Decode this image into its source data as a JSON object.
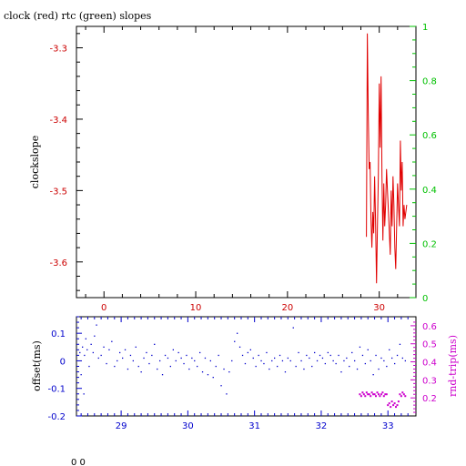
{
  "colors": {
    "clock": "#e00000",
    "rtc": "#00c000",
    "offset": "#0000cc",
    "rtt": "#cc00cc",
    "axis": "#000000"
  },
  "footer": {
    "text": "0 0"
  },
  "chart_data": [
    {
      "type": "line",
      "title": "clock (red) rtc (green) slopes",
      "ylabel": "clockslope",
      "xlim": [
        -3,
        34
      ],
      "ylim": [
        -3.65,
        -3.27
      ],
      "y2lim": [
        0,
        1
      ],
      "x_ticks": [
        0,
        10,
        20,
        30
      ],
      "y_ticks": [
        -3.3,
        -3.4,
        -3.5,
        -3.6
      ],
      "y_tick_labels": [
        "-3.3",
        "-3.4",
        "-3.5",
        "-3.6"
      ],
      "y2_ticks": [
        0,
        0.2,
        0.4,
        0.6,
        0.8,
        1
      ],
      "y2_tick_labels": [
        "0",
        "0.2",
        "0.4",
        "0.6",
        "0.8",
        "1"
      ],
      "series": [
        {
          "name": "clock",
          "x": [
            28.6,
            28.7,
            28.8,
            28.9,
            29.0,
            29.1,
            29.2,
            29.3,
            29.4,
            29.5,
            29.6,
            29.7,
            29.8,
            29.9,
            30.0,
            30.1,
            30.2,
            30.3,
            30.4,
            30.5,
            30.6,
            30.7,
            30.8,
            30.9,
            31.0,
            31.1,
            31.2,
            31.3,
            31.4,
            31.5,
            31.6,
            31.7,
            31.8,
            31.9,
            32.0,
            32.1,
            32.2,
            32.3,
            32.4,
            32.5,
            32.6,
            32.7,
            32.8,
            32.9,
            33.0
          ],
          "y": [
            -3.565,
            -3.28,
            -3.39,
            -3.47,
            -3.46,
            -3.54,
            -3.58,
            -3.53,
            -3.56,
            -3.48,
            -3.54,
            -3.63,
            -3.55,
            -3.48,
            -3.35,
            -3.44,
            -3.34,
            -3.48,
            -3.57,
            -3.49,
            -3.55,
            -3.52,
            -3.47,
            -3.5,
            -3.53,
            -3.56,
            -3.59,
            -3.5,
            -3.55,
            -3.48,
            -3.52,
            -3.58,
            -3.61,
            -3.55,
            -3.49,
            -3.52,
            -3.55,
            -3.43,
            -3.5,
            -3.46,
            -3.55,
            -3.52,
            -3.54,
            -3.53,
            -3.52
          ]
        }
      ]
    },
    {
      "type": "scatter",
      "ylabel": "offset(ms)",
      "y2label": "rnd-trip(ms)",
      "xlim": [
        28.33,
        33.42
      ],
      "ylim": [
        -0.2,
        0.16
      ],
      "y2lim": [
        0.1,
        0.65
      ],
      "x_ticks": [
        29,
        30,
        31,
        32,
        33
      ],
      "y_ticks": [
        0.1,
        0,
        -0.1,
        -0.2
      ],
      "y_tick_labels": [
        "0.1",
        "0",
        "-0.1",
        "-0.2"
      ],
      "y2_ticks": [
        0.2,
        0.3,
        0.4,
        0.5,
        0.6
      ],
      "y2_tick_labels": [
        "0.2",
        "0.3",
        "0.4",
        "0.5",
        "0.6"
      ],
      "series": [
        {
          "name": "offset",
          "x": [
            28.38,
            28.4,
            28.42,
            28.44,
            28.45,
            28.47,
            28.49,
            28.52,
            28.55,
            28.58,
            28.6,
            28.63,
            28.66,
            28.7,
            28.74,
            28.78,
            28.82,
            28.86,
            28.9,
            28.94,
            28.98,
            29.02,
            29.06,
            29.1,
            29.14,
            29.18,
            29.22,
            29.26,
            29.3,
            29.34,
            29.38,
            29.42,
            29.46,
            29.5,
            29.54,
            29.58,
            29.62,
            29.66,
            29.7,
            29.74,
            29.78,
            29.82,
            29.86,
            29.9,
            29.94,
            29.98,
            30.02,
            30.06,
            30.1,
            30.14,
            30.18,
            30.22,
            30.26,
            30.3,
            30.34,
            30.38,
            30.42,
            30.46,
            30.5,
            30.54,
            30.58,
            30.62,
            30.66,
            30.7,
            30.74,
            30.78,
            30.82,
            30.86,
            30.9,
            30.94,
            30.98,
            31.02,
            31.06,
            31.1,
            31.14,
            31.18,
            31.22,
            31.26,
            31.3,
            31.34,
            31.38,
            31.42,
            31.46,
            31.5,
            31.54,
            31.58,
            31.62,
            31.66,
            31.7,
            31.74,
            31.78,
            31.82,
            31.86,
            31.9,
            31.94,
            31.98,
            32.02,
            32.06,
            32.1,
            32.14,
            32.18,
            32.22,
            32.26,
            32.3,
            32.34,
            32.38,
            32.42,
            32.46,
            32.5,
            32.54,
            32.58,
            32.62,
            32.66,
            32.7,
            32.74,
            32.78,
            32.82,
            32.86,
            32.9,
            32.94,
            32.98,
            33.02,
            33.06,
            33.1,
            33.14,
            33.18,
            33.22,
            33.26
          ],
          "y": [
            0.03,
            -0.05,
            0.05,
            -0.12,
            0.02,
            0.08,
            0.04,
            -0.02,
            0.06,
            0.03,
            0.09,
            0.13,
            0.01,
            0.02,
            0.05,
            -0.01,
            0.04,
            0.07,
            -0.02,
            0.0,
            0.03,
            0.01,
            0.04,
            -0.03,
            0.02,
            0.0,
            0.05,
            -0.02,
            -0.04,
            0.01,
            0.03,
            -0.01,
            0.02,
            0.06,
            -0.03,
            0.0,
            -0.05,
            0.02,
            0.01,
            -0.02,
            0.04,
            0.0,
            0.03,
            0.01,
            -0.01,
            0.02,
            -0.03,
            0.01,
            0.0,
            -0.02,
            0.03,
            -0.04,
            0.01,
            -0.05,
            0.0,
            -0.06,
            -0.02,
            0.02,
            -0.09,
            -0.03,
            -0.12,
            -0.04,
            0.0,
            0.07,
            0.1,
            0.05,
            0.02,
            -0.01,
            0.03,
            0.04,
            0.01,
            -0.02,
            0.02,
            0.0,
            -0.01,
            0.03,
            -0.03,
            0.0,
            0.01,
            -0.02,
            0.02,
            0.0,
            -0.04,
            0.01,
            0.0,
            0.12,
            -0.02,
            0.03,
            0.0,
            -0.03,
            0.02,
            0.01,
            -0.02,
            0.03,
            0.0,
            0.02,
            0.01,
            -0.01,
            0.03,
            0.02,
            0.0,
            -0.01,
            0.02,
            -0.04,
            0.0,
            0.01,
            -0.02,
            0.03,
            0.0,
            -0.03,
            0.05,
            0.02,
            -0.01,
            0.04,
            0.0,
            -0.05,
            0.02,
            -0.03,
            0.01,
            0.0,
            -0.02,
            0.04,
            0.01,
            -0.01,
            0.02,
            0.06,
            0.01,
            0.0
          ]
        },
        {
          "name": "rnd-trip",
          "x": [
            32.58,
            32.6,
            32.62,
            32.64,
            32.66,
            32.68,
            32.7,
            32.72,
            32.74,
            32.76,
            32.78,
            32.8,
            32.82,
            32.84,
            32.86,
            32.88,
            32.9,
            32.92,
            32.94,
            32.96,
            32.98,
            33.0,
            33.02,
            33.04,
            33.06,
            33.08,
            33.1,
            33.12,
            33.14,
            33.16,
            33.18,
            33.2,
            33.22,
            33.24,
            33.26
          ],
          "y": [
            0.22,
            0.21,
            0.23,
            0.22,
            0.21,
            0.23,
            0.22,
            0.22,
            0.21,
            0.23,
            0.22,
            0.22,
            0.21,
            0.23,
            0.22,
            0.21,
            0.22,
            0.23,
            0.21,
            0.22,
            0.22,
            0.16,
            0.17,
            0.15,
            0.18,
            0.16,
            0.17,
            0.15,
            0.16,
            0.18,
            0.22,
            0.21,
            0.23,
            0.22,
            0.21
          ]
        }
      ]
    }
  ]
}
